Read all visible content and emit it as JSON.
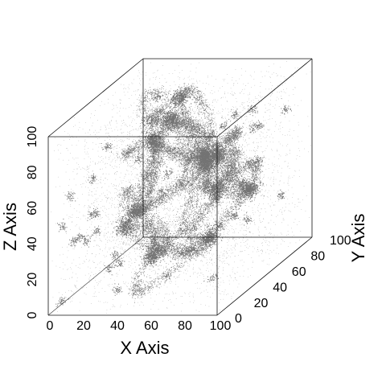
{
  "chart_data": {
    "type": "scatter",
    "subtype": "3d-point-cloud-box",
    "title": "",
    "xlabel": "X Axis",
    "ylabel": "Y Axis",
    "zlabel": "Z Axis",
    "xlim": [
      0,
      100
    ],
    "ylim": [
      0,
      100
    ],
    "zlim": [
      0,
      100
    ],
    "x_ticks": [
      "0",
      "20",
      "40",
      "60",
      "80",
      "100"
    ],
    "y_ticks": [
      "0",
      "20",
      "40",
      "60",
      "80",
      "100"
    ],
    "z_ticks": [
      "0",
      "20",
      "40",
      "60",
      "80",
      "100"
    ],
    "grid": false,
    "point_color": "#000000",
    "box_color": "#111111",
    "description_of_data": "dense cosmic-web-like filaments and clusters of black points filling a 100x100x100 cube",
    "filament_hubs": [
      [
        45,
        50,
        88
      ],
      [
        70,
        40,
        72
      ],
      [
        25,
        65,
        70
      ],
      [
        55,
        80,
        55
      ],
      [
        35,
        30,
        45
      ],
      [
        80,
        70,
        40
      ],
      [
        50,
        20,
        25
      ],
      [
        20,
        45,
        30
      ],
      [
        65,
        55,
        20
      ],
      [
        85,
        25,
        60
      ],
      [
        30,
        85,
        85
      ],
      [
        60,
        60,
        60
      ]
    ]
  }
}
